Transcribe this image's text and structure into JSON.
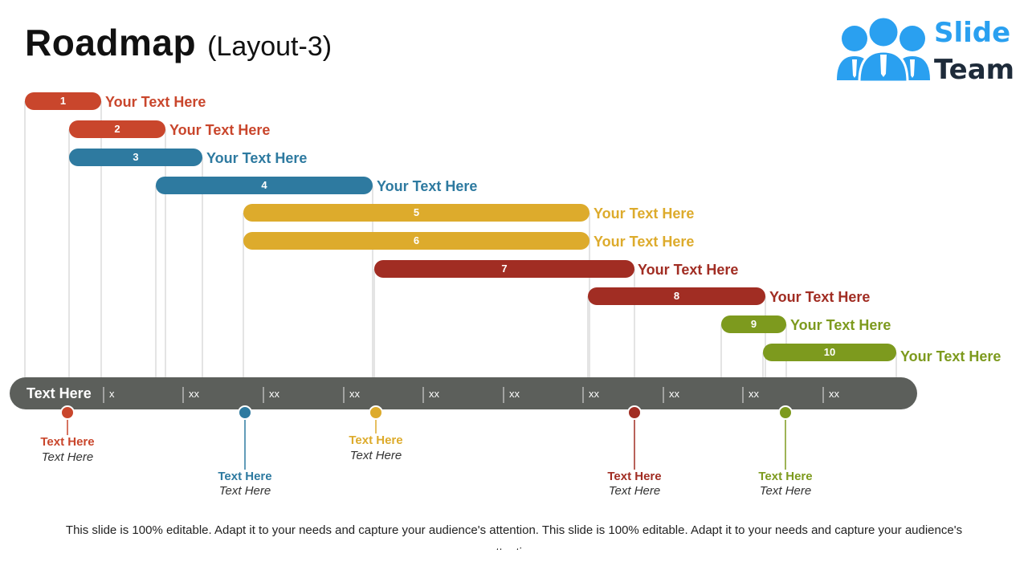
{
  "header": {
    "title": "Roadmap",
    "subtitle": "(Layout-3)"
  },
  "logo": {
    "line1": "Slide",
    "line2": "Team",
    "icon": "people-group-icon",
    "color_primary": "#2aa0f0",
    "color_secondary": "#1e2b3a"
  },
  "colors": {
    "orange": "#c9462c",
    "blue": "#2e7aa0",
    "yellow": "#ddab2c",
    "red": "#a12d23",
    "green": "#7d9a1e",
    "axis": "#5c5f5b"
  },
  "bars": [
    {
      "num": "1",
      "label": "Your Text Here",
      "color": "#c9462c"
    },
    {
      "num": "2",
      "label": "Your Text Here",
      "color": "#c9462c"
    },
    {
      "num": "3",
      "label": "Your Text Here",
      "color": "#2e7aa0"
    },
    {
      "num": "4",
      "label": "Your Text Here",
      "color": "#2e7aa0"
    },
    {
      "num": "5",
      "label": "Your Text Here",
      "color": "#ddab2c"
    },
    {
      "num": "6",
      "label": "Your Text Here",
      "color": "#ddab2c"
    },
    {
      "num": "7",
      "label": "Your Text Here",
      "color": "#a12d23"
    },
    {
      "num": "8",
      "label": "Your Text Here",
      "color": "#a12d23"
    },
    {
      "num": "9",
      "label": "Your Text Here",
      "color": "#7d9a1e"
    },
    {
      "num": "10",
      "label": "Your Text Here",
      "color": "#7d9a1e"
    }
  ],
  "axis": {
    "start_label": "Text Here",
    "ticks": [
      "x",
      "xx",
      "xx",
      "xx",
      "xx",
      "xx",
      "xx",
      "xx",
      "xx",
      "xx"
    ]
  },
  "milestones": [
    {
      "title": "Text Here",
      "desc": "Text Here",
      "color": "#c9462c"
    },
    {
      "title": "Text Here",
      "desc": "Text Here",
      "color": "#2e7aa0"
    },
    {
      "title": "Text Here",
      "desc": "Text Here",
      "color": "#ddab2c"
    },
    {
      "title": "Text Here",
      "desc": "Text Here",
      "color": "#a12d23"
    },
    {
      "title": "Text Here",
      "desc": "Text Here",
      "color": "#7d9a1e"
    }
  ],
  "footer": {
    "text": "This slide is 100% editable. Adapt it to your needs and capture your audience's attention. This slide is 100% editable. Adapt it to your needs and capture your audience's attention."
  }
}
